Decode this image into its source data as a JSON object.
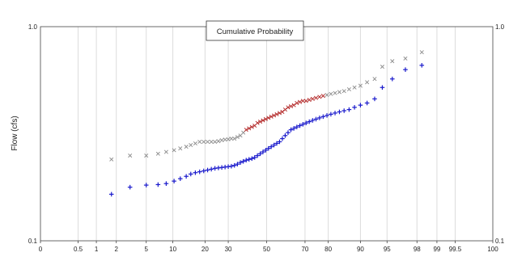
{
  "chart_data": {
    "type": "scatter",
    "title": "Cumulative Probability",
    "ylabel": "Flow (cfs)",
    "xlabel": "",
    "x_scale": "normal-probability",
    "y_scale": "log",
    "ylim": [
      0.1,
      1.0
    ],
    "y_ticks": [
      "0.1",
      "1.0"
    ],
    "y_ticks_right": [
      "0.1",
      "1.0"
    ],
    "x_ticks": [
      0,
      0.5,
      1,
      2,
      5,
      10,
      20,
      30,
      50,
      70,
      80,
      90,
      95,
      98,
      99,
      99.5,
      100
    ],
    "x_tick_labels": [
      "0",
      "0.5",
      "1",
      "2",
      "5",
      "10",
      "20",
      "30",
      "50",
      "70",
      "80",
      "90",
      "95",
      "98",
      "99",
      "99.5",
      "100"
    ],
    "grid": true,
    "series": [
      {
        "marker": "x",
        "color": "#8a8a8a",
        "highlight_color": "#b02020",
        "highlight_range": [
          38,
          78
        ],
        "x": [
          1.7,
          3.1,
          5.0,
          6.9,
          8.5,
          10.3,
          11.9,
          13.6,
          15.0,
          16.5,
          18.0,
          19.5,
          21.0,
          22.5,
          24.0,
          25.5,
          27.0,
          28.5,
          30.0,
          31.5,
          33.0,
          34.5,
          36.0,
          37.5,
          39.0,
          40.5,
          42.0,
          43.5,
          45.0,
          46.5,
          48.0,
          49.5,
          51.0,
          52.5,
          54.0,
          55.5,
          57.0,
          58.5,
          60.0,
          61.5,
          63.0,
          64.5,
          66.0,
          67.5,
          69.0,
          70.5,
          72.0,
          73.5,
          75.0,
          76.5,
          78.0,
          79.5,
          81.0,
          82.5,
          84.0,
          85.5,
          87.0,
          88.5,
          90.0,
          91.5,
          93.0,
          94.3,
          95.7,
          97.1,
          98.3
        ],
        "y": [
          0.24,
          0.25,
          0.25,
          0.255,
          0.26,
          0.265,
          0.27,
          0.275,
          0.28,
          0.285,
          0.29,
          0.29,
          0.29,
          0.29,
          0.29,
          0.292,
          0.295,
          0.297,
          0.298,
          0.3,
          0.3,
          0.305,
          0.31,
          0.32,
          0.33,
          0.335,
          0.34,
          0.345,
          0.355,
          0.36,
          0.365,
          0.37,
          0.375,
          0.38,
          0.385,
          0.39,
          0.395,
          0.4,
          0.41,
          0.42,
          0.425,
          0.43,
          0.44,
          0.445,
          0.45,
          0.45,
          0.455,
          0.46,
          0.465,
          0.47,
          0.475,
          0.48,
          0.485,
          0.49,
          0.495,
          0.5,
          0.51,
          0.52,
          0.53,
          0.55,
          0.57,
          0.65,
          0.69,
          0.71,
          0.76
        ]
      },
      {
        "marker": "+",
        "color": "#1a1acc",
        "x": [
          1.7,
          3.1,
          5.0,
          6.9,
          8.5,
          10.3,
          11.9,
          13.6,
          15.0,
          16.5,
          18.0,
          19.5,
          21.0,
          22.5,
          24.0,
          25.5,
          27.0,
          28.5,
          30.0,
          31.5,
          33.0,
          34.5,
          36.0,
          37.5,
          39.0,
          40.5,
          42.0,
          43.5,
          45.0,
          46.5,
          48.0,
          49.5,
          51.0,
          52.5,
          54.0,
          55.5,
          57.0,
          58.5,
          60.0,
          61.5,
          63.0,
          64.5,
          66.0,
          67.5,
          69.0,
          70.5,
          72.0,
          73.5,
          75.0,
          76.5,
          78.0,
          79.5,
          81.0,
          82.5,
          84.0,
          85.5,
          87.0,
          88.5,
          90.0,
          91.5,
          93.0,
          94.3,
          95.7,
          97.1,
          98.3
        ],
        "y": [
          0.165,
          0.178,
          0.182,
          0.183,
          0.185,
          0.19,
          0.195,
          0.2,
          0.205,
          0.208,
          0.21,
          0.212,
          0.214,
          0.216,
          0.218,
          0.219,
          0.22,
          0.221,
          0.222,
          0.223,
          0.225,
          0.228,
          0.232,
          0.235,
          0.238,
          0.24,
          0.242,
          0.245,
          0.25,
          0.255,
          0.26,
          0.265,
          0.27,
          0.275,
          0.28,
          0.285,
          0.29,
          0.3,
          0.31,
          0.32,
          0.33,
          0.335,
          0.34,
          0.345,
          0.35,
          0.355,
          0.36,
          0.365,
          0.37,
          0.375,
          0.38,
          0.385,
          0.39,
          0.395,
          0.4,
          0.405,
          0.41,
          0.42,
          0.43,
          0.44,
          0.46,
          0.52,
          0.57,
          0.63,
          0.66
        ]
      }
    ]
  }
}
